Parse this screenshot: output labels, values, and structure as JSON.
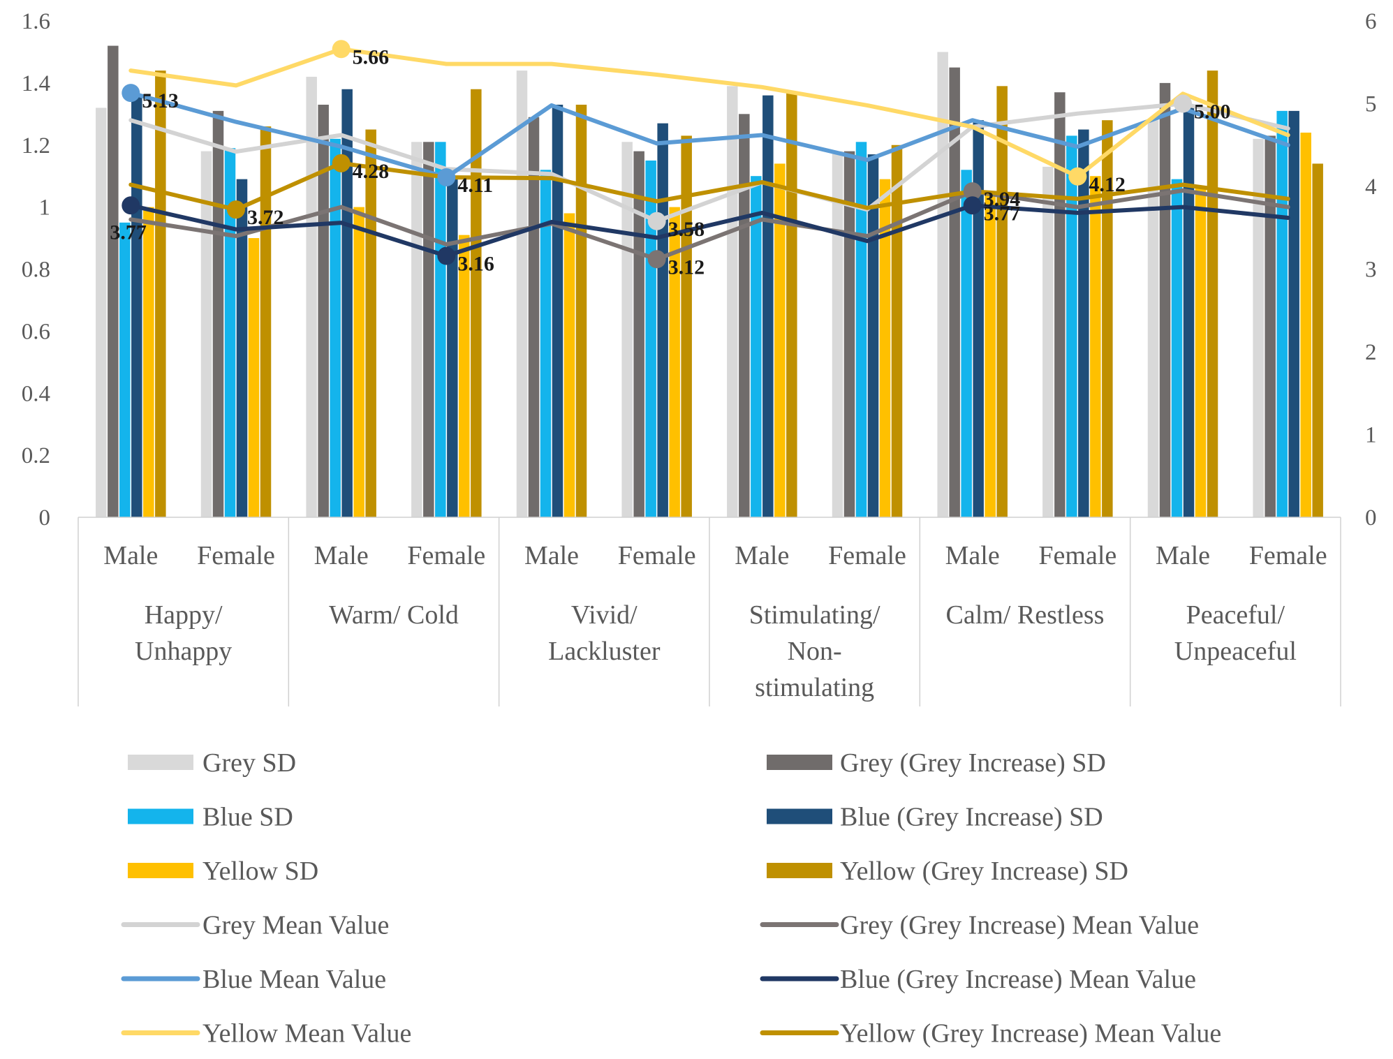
{
  "chart_data": {
    "type": "bar",
    "title": "",
    "xlabel": "",
    "ylabel": "",
    "y_left_ticks": [
      "0",
      "0.2",
      "0.4",
      "0.6",
      "0.8",
      "1",
      "1.2",
      "1.4",
      "1.6"
    ],
    "y_right_ticks": [
      "0",
      "1",
      "2",
      "3",
      "4",
      "5",
      "6"
    ],
    "ylim_left": [
      0,
      1.6
    ],
    "ylim_right": [
      0,
      6
    ],
    "groups": [
      {
        "label_lines": [
          "Happy/",
          "Unhappy"
        ]
      },
      {
        "label_lines": [
          "Warm/ Cold"
        ]
      },
      {
        "label_lines": [
          "Vivid/",
          "Lackluster"
        ]
      },
      {
        "label_lines": [
          "Stimulating/",
          "Non-",
          "stimulating"
        ]
      },
      {
        "label_lines": [
          "Calm/ Restless"
        ]
      },
      {
        "label_lines": [
          "Peaceful/",
          "Unpeaceful"
        ]
      }
    ],
    "categories": [
      "Male",
      "Female",
      "Male",
      "Female",
      "Male",
      "Female",
      "Male",
      "Female",
      "Male",
      "Female",
      "Male",
      "Female"
    ],
    "bar_series": [
      {
        "name": "Grey SD",
        "color": "#d9d9d9",
        "values": [
          1.32,
          1.18,
          1.42,
          1.21,
          1.44,
          1.21,
          1.39,
          1.18,
          1.5,
          1.13,
          1.28,
          1.22
        ]
      },
      {
        "name": "Grey (Grey Increase) SD",
        "color": "#706c6b",
        "values": [
          1.52,
          1.31,
          1.33,
          1.21,
          1.29,
          1.18,
          1.3,
          1.18,
          1.45,
          1.37,
          1.4,
          1.23
        ]
      },
      {
        "name": "Blue SD",
        "color": "#14b4ec",
        "values": [
          0.95,
          1.19,
          1.22,
          1.21,
          1.12,
          1.15,
          1.1,
          1.21,
          1.12,
          1.23,
          1.09,
          1.31
        ]
      },
      {
        "name": "Blue (Grey Increase) SD",
        "color": "#1f4e79",
        "values": [
          1.36,
          1.09,
          1.38,
          1.1,
          1.33,
          1.27,
          1.36,
          1.17,
          1.28,
          1.25,
          1.32,
          1.31
        ]
      },
      {
        "name": "Yellow SD",
        "color": "#ffc000",
        "values": [
          1.0,
          0.9,
          1.0,
          0.91,
          0.98,
          1.0,
          1.14,
          1.09,
          1.05,
          1.1,
          1.06,
          1.24
        ]
      },
      {
        "name": "Yellow (Grey Increase) SD",
        "color": "#bf9000",
        "values": [
          1.44,
          1.26,
          1.25,
          1.38,
          1.33,
          1.23,
          1.37,
          1.2,
          1.39,
          1.28,
          1.44,
          1.14
        ]
      }
    ],
    "line_series": [
      {
        "name": "Grey Mean Value",
        "color": "#d3d3d3",
        "values": [
          4.8,
          4.42,
          4.62,
          4.21,
          4.15,
          3.58,
          4.05,
          3.72,
          4.72,
          4.88,
          5.0,
          4.7
        ]
      },
      {
        "name": "Grey (Grey Increase) Mean Value",
        "color": "#7b7473",
        "values": [
          3.6,
          3.4,
          3.75,
          3.3,
          3.55,
          3.12,
          3.6,
          3.4,
          3.94,
          3.75,
          3.95,
          3.75
        ]
      },
      {
        "name": "Blue Mean Value",
        "color": "#5b9bd5",
        "values": [
          5.13,
          4.78,
          4.48,
          4.11,
          4.98,
          4.52,
          4.62,
          4.32,
          4.8,
          4.48,
          4.94,
          4.5
        ]
      },
      {
        "name": "Blue (Grey Increase) Mean Value",
        "color": "#203864",
        "values": [
          3.77,
          3.48,
          3.56,
          3.16,
          3.57,
          3.38,
          3.68,
          3.34,
          3.77,
          3.68,
          3.75,
          3.62
        ]
      },
      {
        "name": "Yellow Mean Value",
        "color": "#ffd966",
        "values": [
          5.4,
          5.22,
          5.66,
          5.48,
          5.48,
          5.35,
          5.2,
          4.98,
          4.72,
          4.12,
          5.12,
          4.62
        ]
      },
      {
        "name": "Yellow (Grey Increase) Mean Value",
        "color": "#bf9000",
        "values": [
          4.02,
          3.72,
          4.28,
          4.11,
          4.1,
          3.82,
          4.05,
          3.74,
          3.94,
          3.85,
          4.02,
          3.85
        ]
      }
    ],
    "annotations": [
      {
        "series": "Blue Mean Value",
        "index": 0,
        "text": "5.13"
      },
      {
        "series": "Blue (Grey Increase) Mean Value",
        "index": 0,
        "text": "3.77"
      },
      {
        "series": "Yellow (Grey Increase) Mean Value",
        "index": 1,
        "text": "3.72"
      },
      {
        "series": "Yellow Mean Value",
        "index": 2,
        "text": "5.66"
      },
      {
        "series": "Yellow (Grey Increase) Mean Value",
        "index": 2,
        "text": "4.28"
      },
      {
        "series": "Blue Mean Value",
        "index": 3,
        "text": "4.11"
      },
      {
        "series": "Blue (Grey Increase) Mean Value",
        "index": 3,
        "text": "3.16"
      },
      {
        "series": "Grey Mean Value",
        "index": 5,
        "text": "3.58"
      },
      {
        "series": "Grey (Grey Increase) Mean Value",
        "index": 5,
        "text": "3.12"
      },
      {
        "series": "Grey (Grey Increase) Mean Value",
        "index": 8,
        "text": "3.94"
      },
      {
        "series": "Blue (Grey Increase) Mean Value",
        "index": 8,
        "text": "3.77"
      },
      {
        "series": "Yellow Mean Value",
        "index": 9,
        "text": "4.12"
      },
      {
        "series": "Grey Mean Value",
        "index": 10,
        "text": "5.00"
      }
    ],
    "legend": {
      "placement": "bottom",
      "left_column": [
        "Grey SD",
        "Blue SD",
        "Yellow SD",
        "Grey Mean Value",
        "Blue Mean Value",
        "Yellow Mean Value"
      ],
      "right_column": [
        "Grey (Grey Increase) SD",
        "Blue (Grey Increase) SD",
        "Yellow (Grey Increase) SD",
        "Grey (Grey Increase) Mean Value",
        "Blue (Grey Increase) Mean Value",
        "Yellow (Grey Increase) Mean Value"
      ]
    },
    "grid": false
  }
}
